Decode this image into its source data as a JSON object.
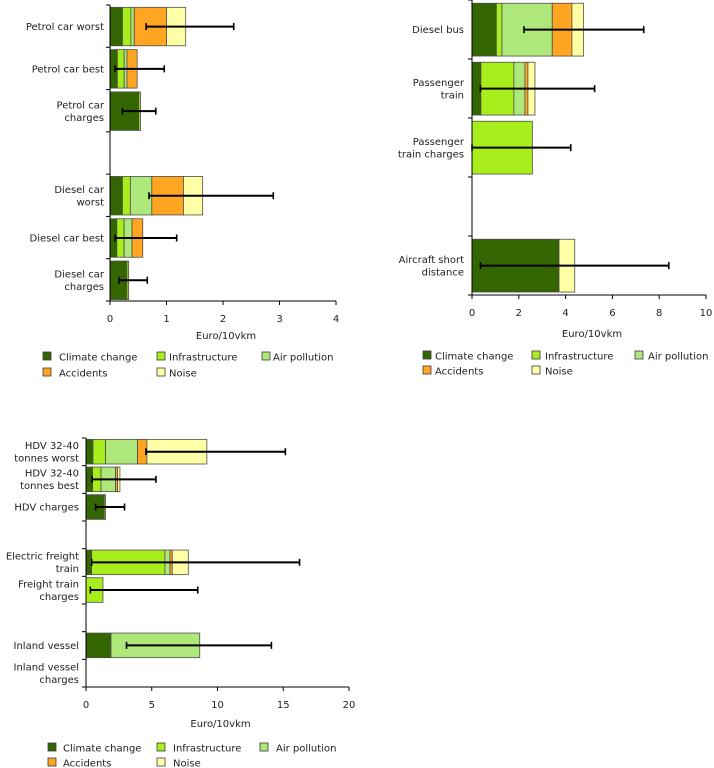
{
  "chart_data": [
    {
      "type": "bar",
      "orientation": "horizontal",
      "stacked": true,
      "title": "",
      "xlabel": "Euro/10vkm",
      "ylabel": "",
      "xlim": [
        0,
        4
      ],
      "xticks": [
        0,
        1,
        2,
        3,
        4
      ],
      "grid": false,
      "categories": [
        "Petrol car worst",
        "Petrol car best",
        "Petrol car\ncharges",
        "",
        "Diesel car\nworst",
        "Diesel car best",
        "Diesel car\ncharges"
      ],
      "series": [
        {
          "name": "Climate change",
          "color": "#336600",
          "values": [
            0.22,
            0.13,
            0.51,
            null,
            0.22,
            0.12,
            0.3
          ]
        },
        {
          "name": "Infrastructure",
          "color": "#a8ee1c",
          "values": [
            0.15,
            0.12,
            0.03,
            null,
            0.14,
            0.13,
            0.03
          ]
        },
        {
          "name": "Air pollution",
          "color": "#aee77a",
          "values": [
            0.06,
            0.05,
            0,
            null,
            0.38,
            0.14,
            0
          ]
        },
        {
          "name": "Accidents",
          "color": "#ffa521",
          "values": [
            0.57,
            0.18,
            0,
            null,
            0.56,
            0.19,
            0
          ]
        },
        {
          "name": "Noise",
          "color": "#ffffa6",
          "values": [
            0.34,
            0,
            0,
            null,
            0.34,
            0,
            0
          ]
        }
      ],
      "error_bars": [
        [
          0.64,
          2.19
        ],
        [
          0.09,
          0.96
        ],
        [
          0.22,
          0.81
        ],
        null,
        [
          0.69,
          2.89
        ],
        [
          0.09,
          1.18
        ],
        [
          0.16,
          0.66
        ]
      ],
      "legend": {
        "entries": [
          "Climate change",
          "Infrastructure",
          "Air pollution",
          "Accidents",
          "Noise"
        ],
        "position": "bottom"
      }
    },
    {
      "type": "bar",
      "orientation": "horizontal",
      "stacked": true,
      "title": "",
      "xlabel": "Euro/10vkm",
      "ylabel": "",
      "xlim": [
        0,
        10
      ],
      "xticks": [
        0,
        2,
        4,
        6,
        8,
        10
      ],
      "grid": false,
      "categories": [
        "Diesel bus",
        "Passenger\ntrain",
        "Passenger\ntrain charges",
        "",
        "Aircraft short\ndistance"
      ],
      "series": [
        {
          "name": "Climate change",
          "color": "#336600",
          "values": [
            1.04,
            0.38,
            0,
            null,
            3.72
          ]
        },
        {
          "name": "Infrastructure",
          "color": "#a8ee1c",
          "values": [
            0.24,
            1.41,
            2.58,
            null,
            0
          ]
        },
        {
          "name": "Air pollution",
          "color": "#aee77a",
          "values": [
            2.15,
            0.47,
            0,
            null,
            0
          ]
        },
        {
          "name": "Accidents",
          "color": "#ffa521",
          "values": [
            0.84,
            0.13,
            0,
            null,
            0
          ]
        },
        {
          "name": "Noise",
          "color": "#ffffa6",
          "values": [
            0.5,
            0.3,
            0,
            null,
            0.67
          ]
        }
      ],
      "error_bars": [
        [
          2.22,
          7.34
        ],
        [
          0.36,
          5.24
        ],
        [
          0.0,
          4.22
        ],
        null,
        [
          0.36,
          8.41
        ]
      ],
      "legend": {
        "entries": [
          "Climate change",
          "Infrastructure",
          "Air pollution",
          "Accidents",
          "Noise"
        ],
        "position": "bottom"
      }
    },
    {
      "type": "bar",
      "orientation": "horizontal",
      "stacked": true,
      "title": "",
      "xlabel": "Euro/10vkm",
      "ylabel": "",
      "xlim": [
        0,
        20
      ],
      "xticks": [
        0,
        5,
        10,
        15,
        20
      ],
      "grid": false,
      "categories": [
        "HDV 32-40\ntonnes worst",
        "HDV 32-40\ntonnes best",
        "HDV charges",
        "",
        "Electric freight\ntrain",
        "Freight train\ncharges",
        "",
        "Inland vessel",
        "Inland vessel\ncharges"
      ],
      "series": [
        {
          "name": "Climate change",
          "color": "#336600",
          "values": [
            0.53,
            0.5,
            1.39,
            null,
            0.43,
            0,
            null,
            1.9,
            0
          ]
        },
        {
          "name": "Infrastructure",
          "color": "#a8ee1c",
          "values": [
            0.96,
            0.64,
            0.1,
            null,
            5.57,
            1.29,
            null,
            0,
            0
          ]
        },
        {
          "name": "Air pollution",
          "color": "#aee77a",
          "values": [
            2.43,
            1.11,
            0,
            null,
            0.38,
            0,
            null,
            6.75,
            0
          ]
        },
        {
          "name": "Accidents",
          "color": "#ffa521",
          "values": [
            0.71,
            0.15,
            0,
            null,
            0.18,
            0,
            null,
            0,
            0
          ]
        },
        {
          "name": "Noise",
          "color": "#ffffa6",
          "values": [
            4.56,
            0.18,
            0,
            null,
            1.22,
            0,
            null,
            0,
            0
          ]
        }
      ],
      "error_bars": [
        [
          4.56,
          15.16
        ],
        [
          0.46,
          5.32
        ],
        [
          0.73,
          2.93
        ],
        null,
        [
          0.43,
          16.24
        ],
        [
          0.33,
          8.5
        ],
        null,
        [
          3.08,
          14.1
        ],
        null
      ],
      "legend": {
        "entries": [
          "Climate change",
          "Infrastructure",
          "Air pollution",
          "Accidents",
          "Noise"
        ],
        "position": "bottom"
      }
    }
  ]
}
